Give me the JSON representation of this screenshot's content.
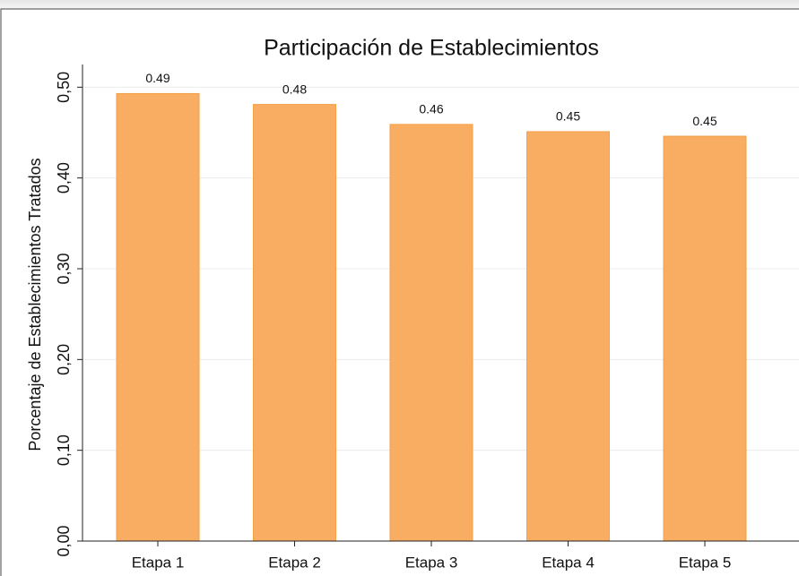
{
  "chart_data": {
    "type": "bar",
    "title": "Participación de Establecimientos",
    "y_label": "Porcentaje de Establecimientos Tratados",
    "categories": [
      "Etapa 1",
      "Etapa 2",
      "Etapa 3",
      "Etapa 4",
      "Etapa 5"
    ],
    "values": [
      0.493,
      0.481,
      0.459,
      0.451,
      0.446
    ],
    "value_labels": [
      "0.49",
      "0.48",
      "0.46",
      "0.45",
      "0.45"
    ],
    "color": "#f9ad62",
    "ylim": [
      0,
      0.525
    ],
    "yticks": [
      {
        "value": 0,
        "label": "0,00"
      },
      {
        "value": 0.1,
        "label": "0,10"
      },
      {
        "value": 0.2,
        "label": "0,20"
      },
      {
        "value": 0.3,
        "label": "0,30"
      },
      {
        "value": 0.4,
        "label": "0,40"
      },
      {
        "value": 0.5,
        "label": "0,50"
      }
    ],
    "grid": true
  }
}
